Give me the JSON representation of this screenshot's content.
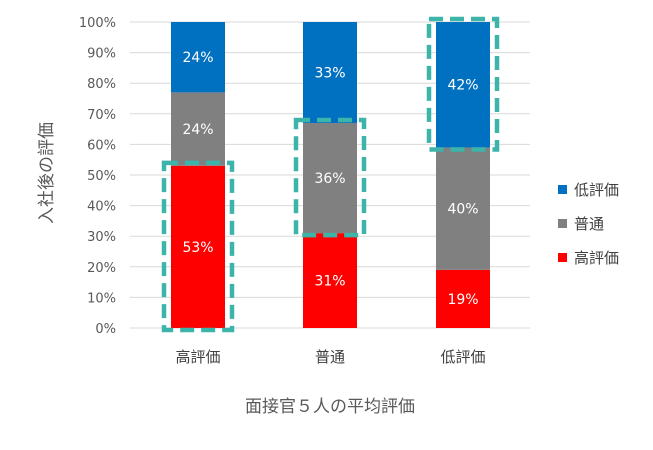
{
  "chart_data": {
    "type": "bar",
    "stacked": true,
    "percent": true,
    "categories": [
      "高評価",
      "普通",
      "低評価"
    ],
    "series": [
      {
        "name": "高評価",
        "values": [
          53,
          31,
          19
        ],
        "labels": [
          "53%",
          "31%",
          "19%"
        ],
        "color": "#ff0000"
      },
      {
        "name": "普通",
        "values": [
          24,
          36,
          40
        ],
        "labels": [
          "24%",
          "36%",
          "40%"
        ],
        "color": "#808080"
      },
      {
        "name": "低評価",
        "values": [
          24,
          33,
          42
        ],
        "labels": [
          "24%",
          "33%",
          "42%"
        ],
        "color": "#0070c0"
      }
    ],
    "y_ticks": [
      "0%",
      "10%",
      "20%",
      "30%",
      "40%",
      "50%",
      "60%",
      "70%",
      "80%",
      "90%",
      "100%"
    ],
    "ylim": [
      0,
      100
    ],
    "xlabel": "面接官５人の平均評価",
    "ylabel": "入社後の評価",
    "grid": true,
    "legend_position": "right",
    "highlights": [
      {
        "category": "高評価",
        "series": "高評価"
      },
      {
        "category": "普通",
        "series": "普通"
      },
      {
        "category": "低評価",
        "series": "低評価"
      }
    ],
    "highlight_color": "#3cb4aa"
  }
}
